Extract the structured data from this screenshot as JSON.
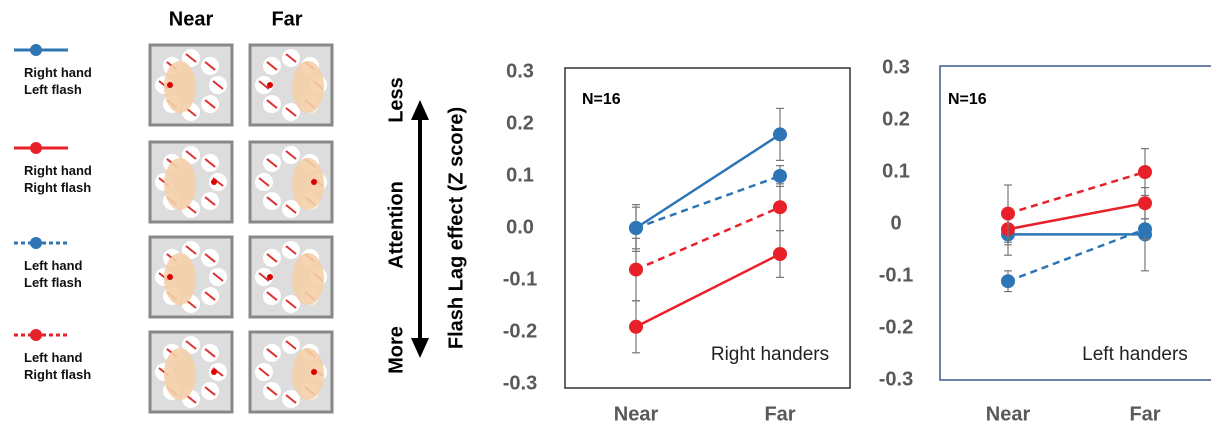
{
  "schematic": {
    "columns": [
      "Near",
      "Far"
    ]
  },
  "chart_data": [
    {
      "type": "line",
      "ylabel": "Flash Lag effect (Z score)",
      "arrow": {
        "label": "Attention",
        "top": "Less",
        "bottom": "More"
      },
      "annotation": "N=16",
      "group": "Right handers",
      "categories": [
        "Near",
        "Far"
      ],
      "ylim": [
        -0.3,
        0.3
      ],
      "yticks": [
        0.3,
        0.2,
        0.1,
        {
          "value": 0,
          "label": "0.0"
        },
        -0.1,
        -0.2,
        -0.3
      ],
      "series": [
        {
          "name": "Right hand Left flash",
          "color": "#2e75b6",
          "linestyle": "solid",
          "values": [
            0.0,
            0.18
          ],
          "errors": [
            0.045,
            0.05
          ]
        },
        {
          "name": "Right hand Right flash",
          "color": "#e8202a",
          "linestyle": "solid",
          "values": [
            -0.19,
            -0.05
          ],
          "errors": [
            0.05,
            0.045
          ]
        },
        {
          "name": "Left hand Left flash",
          "color": "#2e75b6",
          "linestyle": "dashed",
          "values": [
            0.0,
            0.1
          ],
          "errors": [
            0.04,
            0.02
          ]
        },
        {
          "name": "Left hand Right flash",
          "color": "#e8202a",
          "linestyle": "dashed",
          "values": [
            -0.08,
            0.04
          ],
          "errors": [
            0.06,
            0.045
          ]
        }
      ]
    },
    {
      "type": "line",
      "annotation": "N=16",
      "group": "Left handers",
      "categories": [
        "Near",
        "Far"
      ],
      "ylim": [
        -0.3,
        0.3
      ],
      "yticks": [
        0.3,
        0.2,
        0.1,
        0,
        -0.1,
        -0.2,
        -0.3
      ],
      "series": [
        {
          "color": "#2e75b6",
          "linestyle": "solid",
          "values": [
            -0.02,
            -0.02
          ],
          "errors": [
            0.04,
            0.07
          ]
        },
        {
          "color": "#e8202a",
          "linestyle": "solid",
          "values": [
            -0.01,
            0.04
          ],
          "errors": [
            0.03,
            0.03
          ]
        },
        {
          "color": "#2e75b6",
          "linestyle": "dashed",
          "values": [
            -0.11,
            -0.01
          ],
          "errors": [
            0.02,
            0.02
          ]
        },
        {
          "color": "#e8202a",
          "linestyle": "dashed",
          "values": [
            0.02,
            0.1
          ],
          "errors": [
            0.055,
            0.045
          ]
        }
      ]
    }
  ]
}
